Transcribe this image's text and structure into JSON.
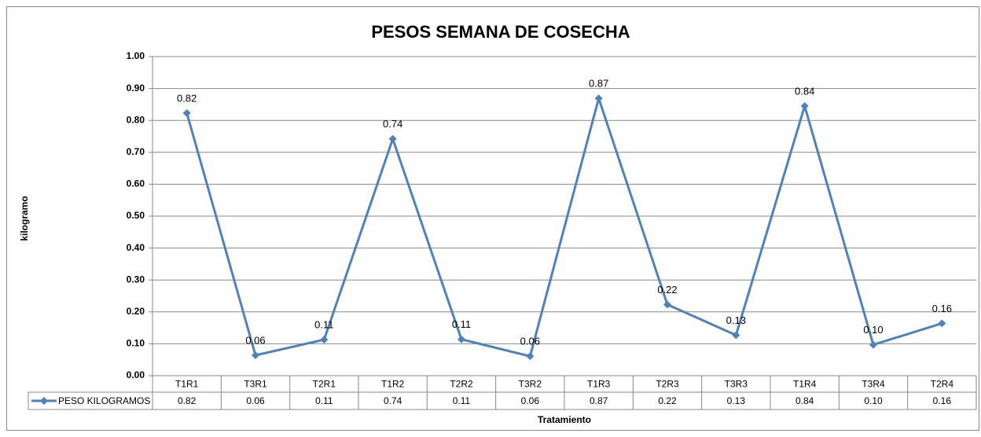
{
  "chart_data": {
    "type": "line",
    "title": "PESOS SEMANA DE COSECHA",
    "x_label": "Tratamiento",
    "y_label": "kilogramo",
    "categories": [
      "T1R1",
      "T3R1",
      "T2R1",
      "T1R2",
      "T2R2",
      "T3R2",
      "T1R3",
      "T2R3",
      "T3R3",
      "T1R4",
      "T3R4",
      "T2R4"
    ],
    "series": [
      {
        "name": "PESO KILOGRAMOS",
        "color": "#4f81bd",
        "values": [
          0.823,
          0.064,
          0.113,
          0.742,
          0.114,
          0.061,
          0.869,
          0.223,
          0.127,
          0.845,
          0.097,
          0.164
        ],
        "value_labels": [
          "0.82",
          "0.06",
          "0.11",
          "0.74",
          "0.11",
          "0.06",
          "0.87",
          "0.22",
          "0.13",
          "0.84",
          "0.10",
          "0.16"
        ]
      }
    ],
    "ylim": [
      0,
      1
    ],
    "yticks": [
      {
        "value": 0,
        "label": "0.00"
      },
      {
        "value": 0.1,
        "label": "0.10"
      },
      {
        "value": 0.2,
        "label": "0.20"
      },
      {
        "value": 0.3,
        "label": "0.30"
      },
      {
        "value": 0.4,
        "label": "0.40"
      },
      {
        "value": 0.5,
        "label": "0.50"
      },
      {
        "value": 0.6,
        "label": "0.60"
      },
      {
        "value": 0.7,
        "label": "0.70"
      },
      {
        "value": 0.8,
        "label": "0.80"
      },
      {
        "value": 0.9,
        "label": "0.90"
      },
      {
        "value": 1,
        "label": "1.00"
      }
    ],
    "grid": true
  }
}
